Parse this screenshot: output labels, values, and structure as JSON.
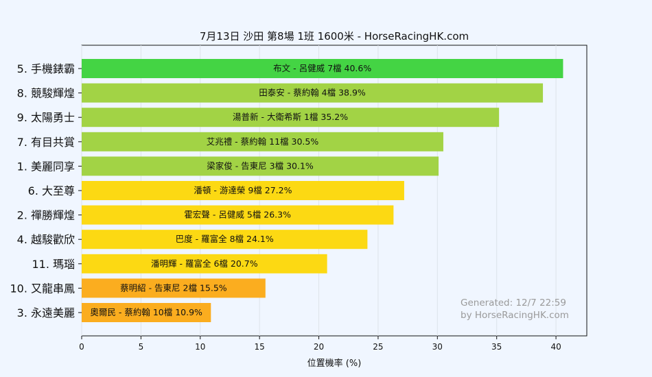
{
  "chart_data": {
    "type": "bar",
    "orientation": "horizontal",
    "title": "7月13日  沙田  第8場  1班  1600米 - HorseRacingHK.com",
    "xlabel": "位置機率 (%)",
    "ylabel": "",
    "xlim": [
      0,
      42.6
    ],
    "xticks": [
      0,
      5,
      10,
      15,
      20,
      25,
      30,
      35,
      40
    ],
    "grid": true,
    "categories": [
      "5. 手機錶霸",
      "8. 競駿輝煌",
      "9. 太陽勇士",
      "7. 有目共賞",
      "1. 美麗同享",
      "6. 大至尊",
      "2. 禪勝輝煌",
      "4. 越駿歡欣",
      "11. 瑪瑙",
      "10. 又龍串鳳",
      "3. 永遠美麗"
    ],
    "values": [
      40.6,
      38.9,
      35.2,
      30.5,
      30.1,
      27.2,
      26.3,
      24.1,
      20.7,
      15.5,
      10.9
    ],
    "bar_labels": [
      "布文 - 呂健威 7檔  40.6%",
      "田泰安 - 蔡約翰 4檔  38.9%",
      "湯普新 - 大衛希斯 1檔  35.2%",
      "艾兆禮 - 蔡約翰 11檔  30.5%",
      "梁家俊 - 告東尼 3檔  30.1%",
      "潘頓 - 游達榮 9檔  27.2%",
      "霍宏聲 - 呂健威 5檔  26.3%",
      "巴度 - 羅富全 8檔  24.1%",
      "潘明輝 - 羅富全 6檔  20.7%",
      "蔡明紹 - 告東尼 2檔  15.5%",
      "奧爾民 - 蔡約翰 10檔  10.9%"
    ],
    "colors": [
      "#44d444",
      "#a2d345",
      "#a2d345",
      "#a2d345",
      "#a2d345",
      "#fcd913",
      "#fcd913",
      "#fcd913",
      "#fcd913",
      "#fbad1f",
      "#fbad1f"
    ],
    "watermark": [
      "Generated: 12/7 22:59",
      "by HorseRacingHK.com"
    ]
  }
}
